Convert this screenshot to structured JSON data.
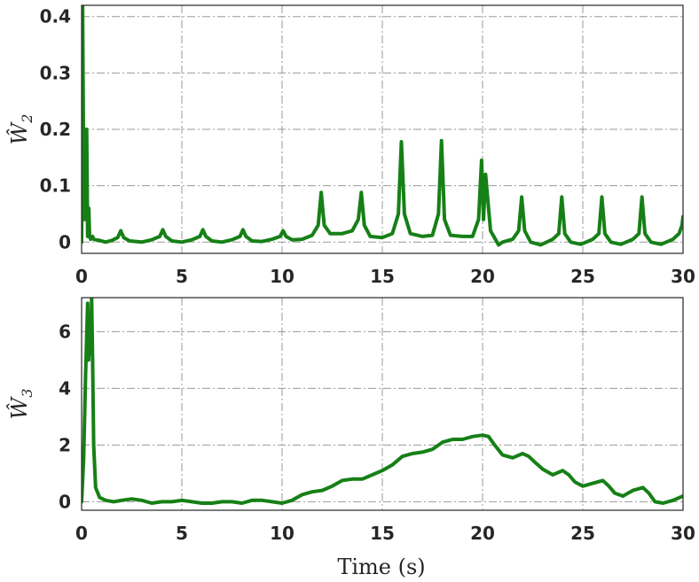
{
  "chart_data": [
    {
      "type": "line",
      "ylabel": "Ŵ",
      "ylabel_sub": "2",
      "xlim": [
        0,
        30
      ],
      "ylim": [
        -0.02,
        0.42
      ],
      "xticks": [
        0,
        5,
        10,
        15,
        20,
        25,
        30
      ],
      "yticks": [
        0,
        0.1,
        0.2,
        0.3,
        0.4
      ],
      "ytick_labels": [
        "0",
        "0.1",
        "0.2",
        "0.3",
        "0.4"
      ],
      "grid": true,
      "color": "#168016",
      "series": [
        {
          "x": [
            0.0,
            0.05,
            0.12,
            0.16,
            0.2,
            0.25,
            0.3,
            0.36,
            0.4,
            0.45,
            0.5,
            0.55,
            0.6,
            0.7,
            0.9,
            1.2,
            1.5,
            1.8,
            1.95,
            2.1,
            2.4,
            3.0,
            3.5,
            3.9,
            4.05,
            4.2,
            4.5,
            5.0,
            5.5,
            5.9,
            6.05,
            6.2,
            6.5,
            7.0,
            7.5,
            7.9,
            8.05,
            8.2,
            8.5,
            9.0,
            9.5,
            9.9,
            10.05,
            10.2,
            10.5,
            11.0,
            11.5,
            11.8,
            11.95,
            12.1,
            12.4,
            13.0,
            13.5,
            13.8,
            13.95,
            14.1,
            14.4,
            15.0,
            15.5,
            15.8,
            15.95,
            16.1,
            16.4,
            17.0,
            17.5,
            17.8,
            17.95,
            18.1,
            18.4,
            19.0,
            19.5,
            19.8,
            19.95,
            20.05,
            20.15,
            20.4,
            20.8,
            21.0,
            21.5,
            21.8,
            21.95,
            22.1,
            22.4,
            22.9,
            23.5,
            23.8,
            23.95,
            24.1,
            24.4,
            24.9,
            25.5,
            25.8,
            25.95,
            26.1,
            26.4,
            26.9,
            27.5,
            27.8,
            27.95,
            28.1,
            28.4,
            28.9,
            29.5,
            29.8,
            29.95,
            30.0
          ],
          "y": [
            0.0,
            0.42,
            0.04,
            0.2,
            0.04,
            0.2,
            0.01,
            0.06,
            0.01,
            0.005,
            0.008,
            0.01,
            0.005,
            0.004,
            0.003,
            0.0,
            0.003,
            0.008,
            0.02,
            0.008,
            0.002,
            0.0,
            0.004,
            0.01,
            0.022,
            0.01,
            0.002,
            0.0,
            0.004,
            0.01,
            0.022,
            0.01,
            0.002,
            0.0,
            0.004,
            0.01,
            0.022,
            0.01,
            0.002,
            0.001,
            0.005,
            0.01,
            0.02,
            0.01,
            0.004,
            0.005,
            0.012,
            0.03,
            0.088,
            0.03,
            0.015,
            0.015,
            0.02,
            0.04,
            0.088,
            0.03,
            0.01,
            0.008,
            0.015,
            0.05,
            0.178,
            0.05,
            0.015,
            0.01,
            0.012,
            0.05,
            0.18,
            0.04,
            0.012,
            0.01,
            0.01,
            0.04,
            0.145,
            0.04,
            0.12,
            0.02,
            -0.005,
            0.0,
            0.005,
            0.02,
            0.08,
            0.02,
            0.0,
            -0.005,
            0.005,
            0.015,
            0.08,
            0.015,
            0.0,
            -0.004,
            0.005,
            0.015,
            0.08,
            0.015,
            0.0,
            -0.004,
            0.005,
            0.015,
            0.08,
            0.015,
            0.0,
            -0.004,
            0.005,
            0.015,
            0.03,
            0.045
          ]
        }
      ]
    },
    {
      "type": "line",
      "ylabel": "Ŵ",
      "ylabel_sub": "3",
      "xlabel": "Time (s)",
      "xlim": [
        0,
        30
      ],
      "ylim": [
        -0.3,
        7.2
      ],
      "xticks": [
        0,
        5,
        10,
        15,
        20,
        25,
        30
      ],
      "yticks": [
        0,
        2,
        4,
        6
      ],
      "ytick_labels": [
        "0",
        "2",
        "4",
        "6"
      ],
      "grid": true,
      "color": "#168016",
      "series": [
        {
          "x": [
            0.0,
            0.1,
            0.2,
            0.3,
            0.35,
            0.4,
            0.45,
            0.5,
            0.55,
            0.6,
            0.7,
            0.9,
            1.2,
            1.6,
            2.0,
            2.5,
            3.0,
            3.5,
            4.0,
            4.5,
            5.0,
            5.5,
            6.0,
            6.5,
            7.0,
            7.5,
            8.0,
            8.5,
            9.0,
            9.5,
            10.0,
            10.5,
            11.0,
            11.5,
            12.0,
            12.5,
            13.0,
            13.5,
            14.0,
            14.5,
            15.0,
            15.5,
            16.0,
            16.5,
            17.0,
            17.5,
            18.0,
            18.5,
            19.0,
            19.5,
            20.0,
            20.3,
            20.6,
            21.0,
            21.5,
            22.0,
            22.3,
            22.6,
            23.0,
            23.5,
            24.0,
            24.3,
            24.6,
            25.0,
            25.5,
            26.0,
            26.3,
            26.6,
            27.0,
            27.5,
            28.0,
            28.3,
            28.6,
            29.0,
            29.5,
            30.0
          ],
          "y": [
            0.0,
            1.5,
            4.5,
            7.0,
            5.0,
            6.0,
            5.2,
            7.2,
            5.0,
            2.0,
            0.5,
            0.15,
            0.05,
            0.0,
            0.05,
            0.1,
            0.05,
            -0.05,
            0.0,
            0.0,
            0.05,
            0.0,
            -0.05,
            -0.05,
            0.0,
            0.0,
            -0.05,
            0.05,
            0.05,
            0.0,
            -0.05,
            0.05,
            0.25,
            0.35,
            0.4,
            0.55,
            0.75,
            0.8,
            0.8,
            0.95,
            1.1,
            1.3,
            1.6,
            1.7,
            1.75,
            1.85,
            2.1,
            2.2,
            2.2,
            2.3,
            2.35,
            2.3,
            2.0,
            1.65,
            1.55,
            1.7,
            1.6,
            1.4,
            1.15,
            0.95,
            1.1,
            0.95,
            0.7,
            0.55,
            0.65,
            0.75,
            0.55,
            0.3,
            0.2,
            0.4,
            0.5,
            0.3,
            0.0,
            -0.05,
            0.05,
            0.2
          ]
        }
      ]
    }
  ]
}
